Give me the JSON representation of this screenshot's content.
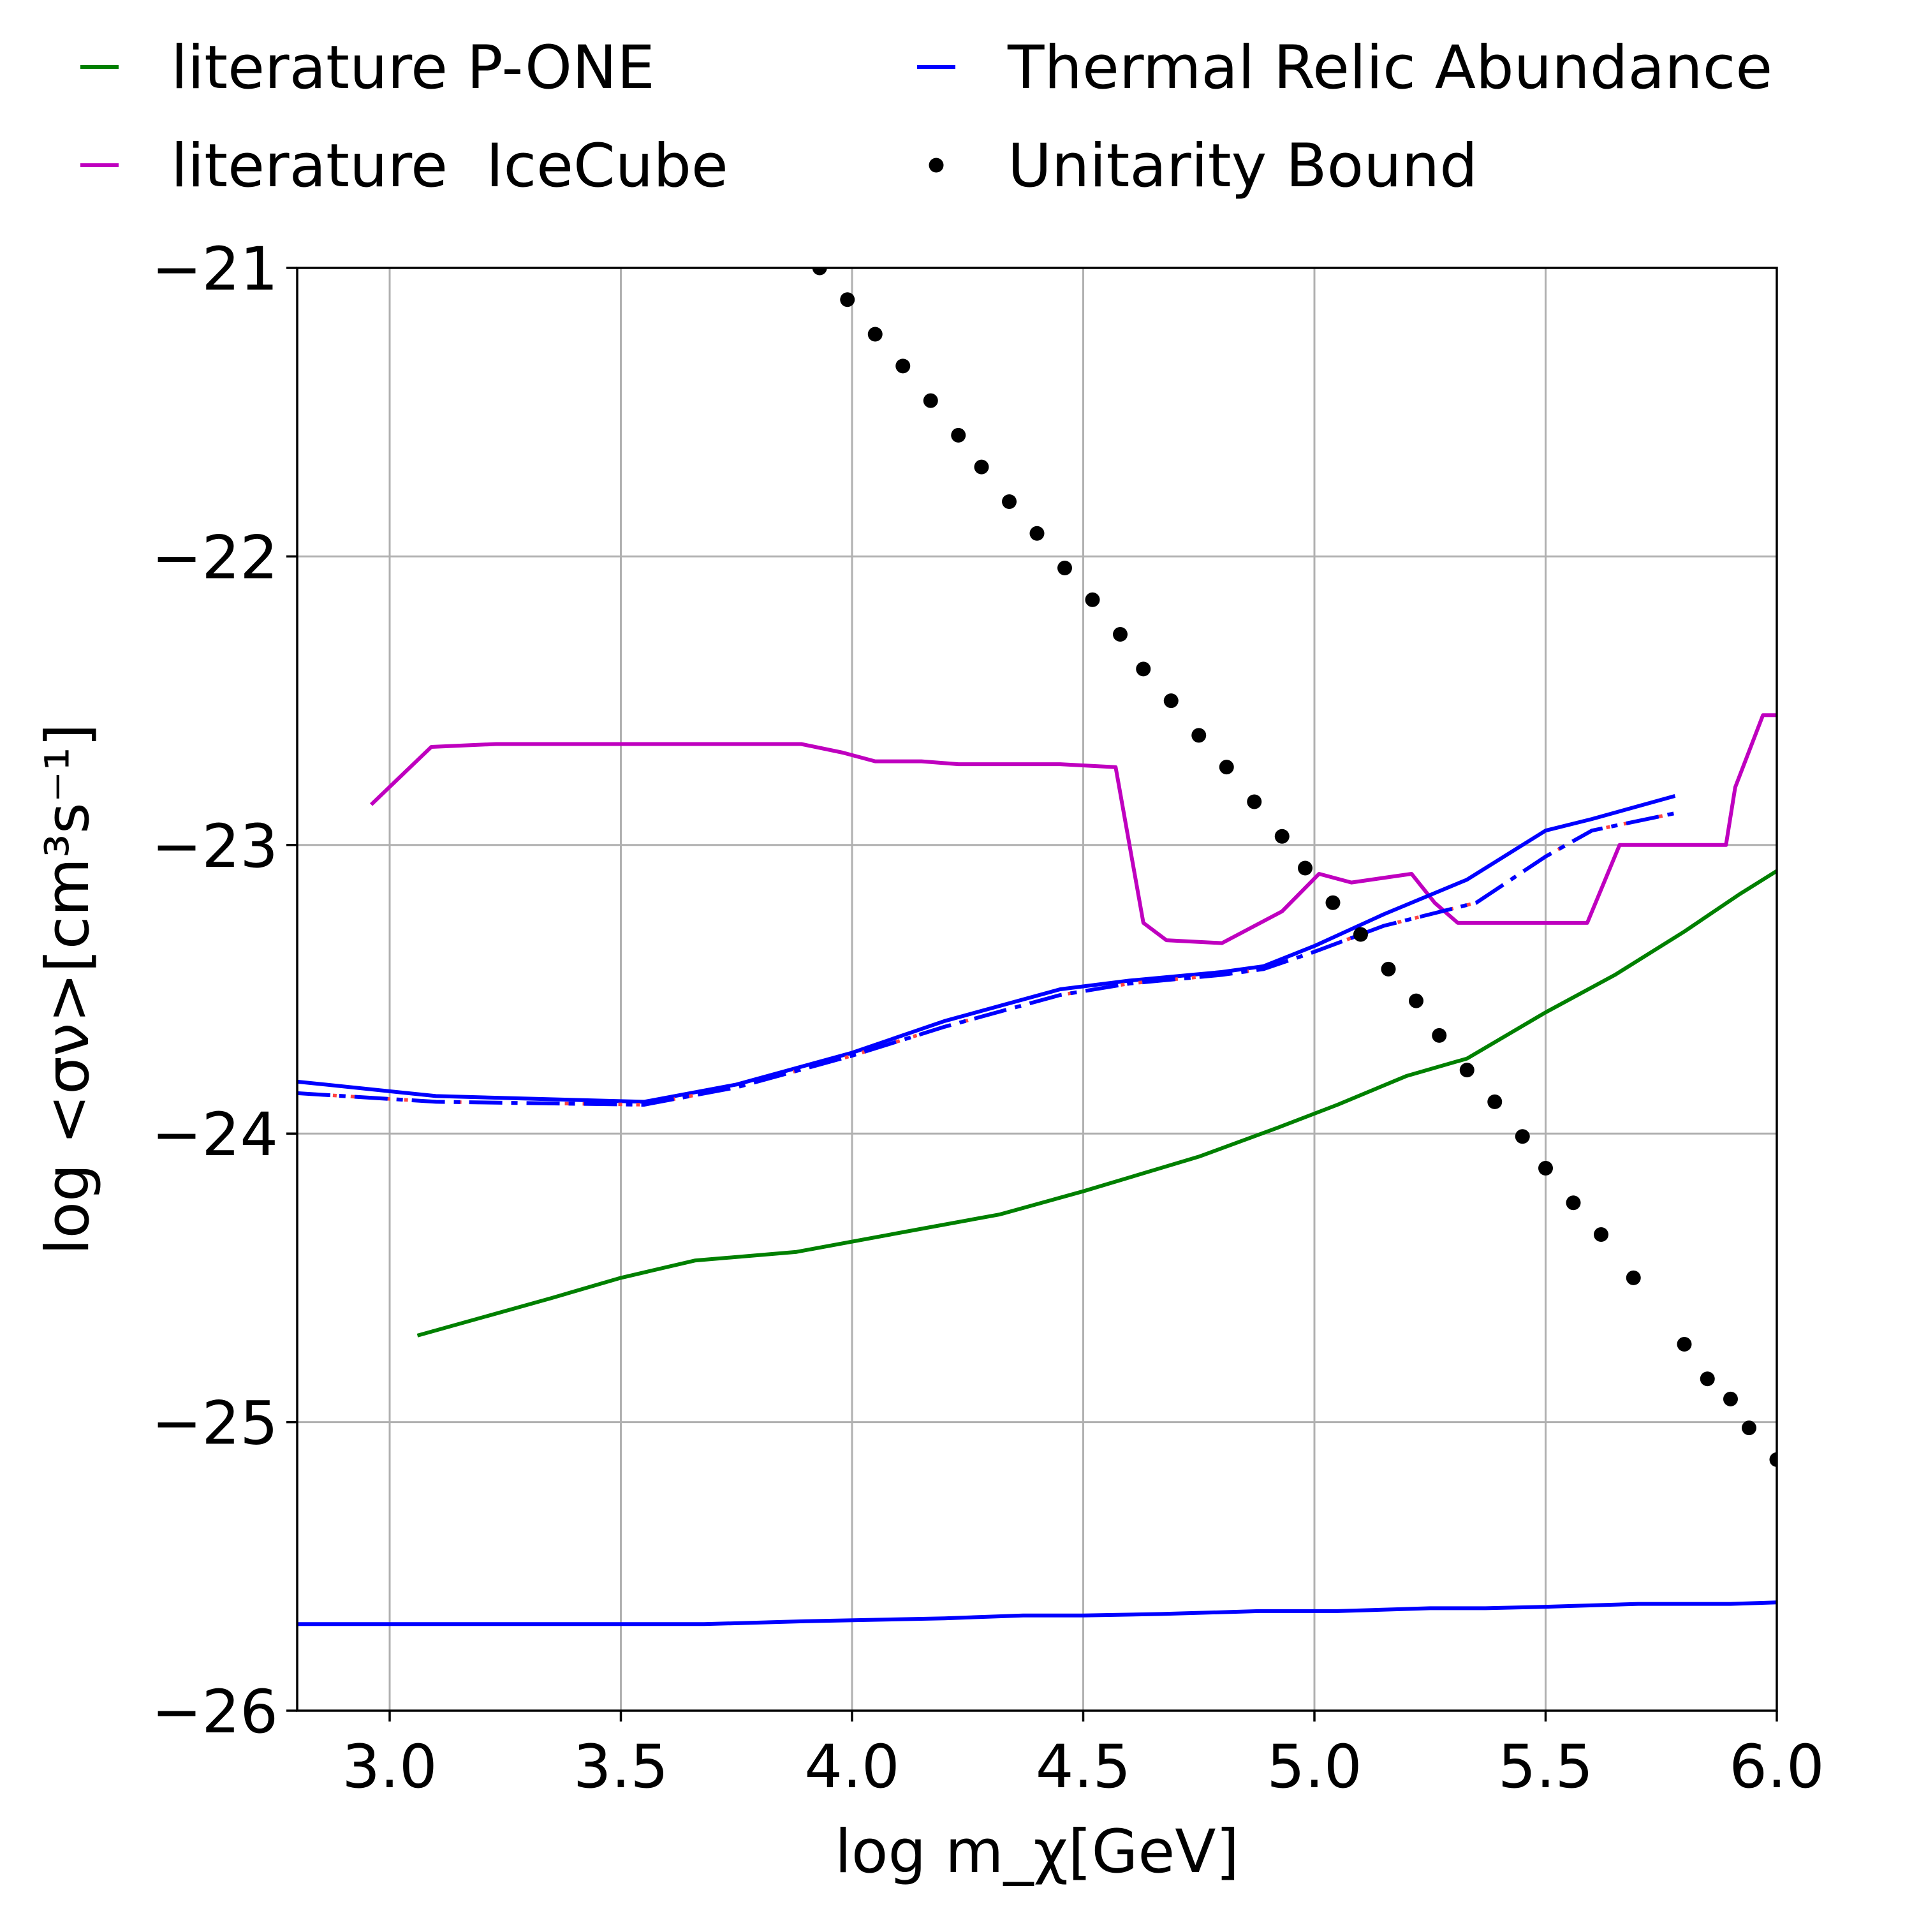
{
  "chart_data": {
    "type": "line",
    "xlabel": "log m_χ[GeV]",
    "ylabel": "log <σν>[cm³s⁻¹]",
    "xlim": [
      2.8,
      6.0
    ],
    "ylim": [
      -26,
      -21
    ],
    "xticks": [
      3.0,
      3.5,
      4.0,
      4.5,
      5.0,
      5.5,
      6.0
    ],
    "xtick_labels": [
      "3.0",
      "3.5",
      "4.0",
      "4.5",
      "5.0",
      "5.5",
      "6.0"
    ],
    "yticks": [
      -21,
      -22,
      -23,
      -24,
      -25,
      -26
    ],
    "ytick_labels": [
      "−21",
      "−22",
      "−23",
      "−24",
      "−25",
      "−26"
    ],
    "grid": true,
    "legend_position": "above plot",
    "legend": [
      {
        "label": "literature P-ONE",
        "color": "#008000",
        "marker": "line"
      },
      {
        "label": "literature  IceCube",
        "color": "#bf00bf",
        "marker": "line"
      },
      {
        "label": "Thermal Relic Abundance",
        "color": "#0000ff",
        "marker": "line"
      },
      {
        "label": "Unitarity Bound",
        "color": "#000000",
        "marker": "dot"
      }
    ],
    "series": [
      {
        "name": "literature P-ONE",
        "color": "#008000",
        "style": "solid",
        "x": [
          3.06,
          3.35,
          3.5,
          3.66,
          3.88,
          4.15,
          4.32,
          4.5,
          4.75,
          4.92,
          5.05,
          5.2,
          5.33,
          5.5,
          5.65,
          5.8,
          5.92,
          6.0
        ],
        "y": [
          -24.7,
          -24.57,
          -24.5,
          -24.44,
          -24.41,
          -24.33,
          -24.28,
          -24.2,
          -24.08,
          -23.98,
          -23.9,
          -23.8,
          -23.74,
          -23.58,
          -23.45,
          -23.3,
          -23.17,
          -23.09
        ]
      },
      {
        "name": "literature  IceCube",
        "color": "#bf00bf",
        "style": "solid",
        "x": [
          2.96,
          3.09,
          3.23,
          3.89,
          3.98,
          4.05,
          4.15,
          4.23,
          4.45,
          4.57,
          4.63,
          4.68,
          4.8,
          4.93,
          5.01,
          5.08,
          5.21,
          5.26,
          5.31,
          5.44,
          5.59,
          5.66,
          5.73,
          5.89,
          5.91,
          5.97,
          6.0
        ],
        "y": [
          -22.86,
          -22.66,
          -22.65,
          -22.65,
          -22.68,
          -22.71,
          -22.71,
          -22.72,
          -22.72,
          -22.73,
          -23.27,
          -23.33,
          -23.34,
          -23.23,
          -23.1,
          -23.13,
          -23.1,
          -23.2,
          -23.27,
          -23.27,
          -23.27,
          -23.0,
          -23.0,
          -23.0,
          -22.8,
          -22.55,
          -22.55
        ]
      },
      {
        "name": "",
        "color": "#0000ff",
        "style": "solid",
        "x": [
          2.8,
          3.1,
          3.55,
          3.75,
          4.0,
          4.2,
          4.45,
          4.6,
          4.8,
          4.89,
          5.0,
          5.15,
          5.33,
          5.5,
          5.6,
          5.78
        ],
        "y": [
          -23.82,
          -23.87,
          -23.89,
          -23.83,
          -23.72,
          -23.61,
          -23.5,
          -23.47,
          -23.44,
          -23.42,
          -23.35,
          -23.24,
          -23.12,
          -22.95,
          -22.91,
          -22.83
        ]
      },
      {
        "name": "",
        "color": "#0000ff",
        "style": "dashdot",
        "secondary_color": "#ff4444",
        "x": [
          2.8,
          3.1,
          3.55,
          3.75,
          4.0,
          4.2,
          4.45,
          4.6,
          4.8,
          4.89,
          5.0,
          5.15,
          5.35,
          5.5,
          5.6,
          5.78
        ],
        "y": [
          -23.86,
          -23.89,
          -23.9,
          -23.84,
          -23.73,
          -23.63,
          -23.52,
          -23.48,
          -23.45,
          -23.43,
          -23.37,
          -23.28,
          -23.2,
          -23.04,
          -22.95,
          -22.89
        ]
      },
      {
        "name": "Thermal Relic Abundance",
        "color": "#0000ff",
        "style": "solid",
        "x": [
          2.8,
          3.0,
          3.5,
          3.68,
          3.9,
          4.2,
          4.37,
          4.5,
          4.67,
          4.88,
          5.05,
          5.25,
          5.37,
          5.5,
          5.7,
          5.9,
          6.0
        ],
        "y": [
          -25.7,
          -25.7,
          -25.7,
          -25.7,
          -25.69,
          -25.68,
          -25.67,
          -25.67,
          -25.665,
          -25.655,
          -25.655,
          -25.645,
          -25.645,
          -25.64,
          -25.63,
          -25.63,
          -25.625
        ]
      },
      {
        "name": "Unitarity Bound",
        "color": "#000000",
        "style": "dots",
        "x": [
          3.93,
          3.99,
          4.05,
          4.11,
          4.17,
          4.23,
          4.28,
          4.34,
          4.4,
          4.46,
          4.52,
          4.58,
          4.63,
          4.69,
          4.75,
          4.81,
          4.87,
          4.93,
          4.98,
          5.04,
          5.1,
          5.16,
          5.22,
          5.27,
          5.33,
          5.39,
          5.45,
          5.5,
          5.56,
          5.62,
          5.69,
          5.8,
          5.85,
          5.9,
          5.94,
          6.0
        ],
        "y": [
          -21.0,
          -21.11,
          -21.23,
          -21.34,
          -21.46,
          -21.58,
          -21.69,
          -21.81,
          -21.92,
          -22.04,
          -22.15,
          -22.27,
          -22.39,
          -22.5,
          -22.62,
          -22.73,
          -22.85,
          -22.97,
          -23.08,
          -23.2,
          -23.31,
          -23.43,
          -23.54,
          -23.66,
          -23.78,
          -23.89,
          -24.01,
          -24.12,
          -24.24,
          -24.35,
          -24.5,
          -24.73,
          -24.85,
          -24.92,
          -25.02,
          -25.13
        ]
      }
    ]
  }
}
